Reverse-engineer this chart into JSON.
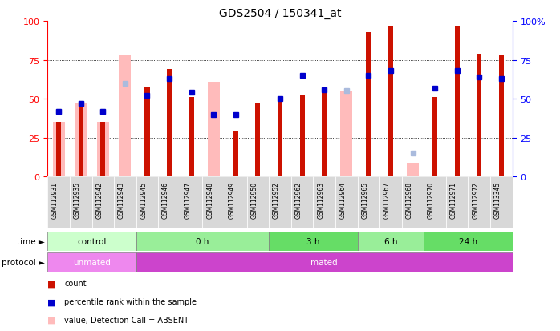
{
  "title": "GDS2504 / 150341_at",
  "samples": [
    "GSM112931",
    "GSM112935",
    "GSM112942",
    "GSM112943",
    "GSM112945",
    "GSM112946",
    "GSM112947",
    "GSM112948",
    "GSM112949",
    "GSM112950",
    "GSM112952",
    "GSM112962",
    "GSM112963",
    "GSM112964",
    "GSM112965",
    "GSM112967",
    "GSM112968",
    "GSM112970",
    "GSM112971",
    "GSM112972",
    "GSM113345"
  ],
  "count_values": [
    35,
    47,
    35,
    null,
    58,
    69,
    51,
    null,
    29,
    47,
    48,
    52,
    57,
    null,
    93,
    97,
    null,
    51,
    97,
    79,
    78
  ],
  "rank_values": [
    42,
    47,
    42,
    null,
    52,
    63,
    54,
    40,
    40,
    null,
    50,
    65,
    56,
    null,
    65,
    68,
    null,
    57,
    68,
    64,
    63
  ],
  "absent_count_values": [
    35,
    47,
    35,
    78,
    null,
    null,
    null,
    61,
    null,
    null,
    null,
    null,
    null,
    55,
    null,
    null,
    9,
    null,
    null,
    null,
    null
  ],
  "absent_rank_values": [
    42,
    47,
    42,
    60,
    null,
    null,
    null,
    null,
    null,
    null,
    null,
    null,
    null,
    55,
    null,
    null,
    15,
    null,
    null,
    null,
    null
  ],
  "time_groups": [
    {
      "label": "control",
      "start": 0,
      "end": 4,
      "color": "#ccffcc"
    },
    {
      "label": "0 h",
      "start": 4,
      "end": 10,
      "color": "#99ee99"
    },
    {
      "label": "3 h",
      "start": 10,
      "end": 14,
      "color": "#66dd66"
    },
    {
      "label": "6 h",
      "start": 14,
      "end": 17,
      "color": "#99ee99"
    },
    {
      "label": "24 h",
      "start": 17,
      "end": 21,
      "color": "#66dd66"
    }
  ],
  "protocol_groups": [
    {
      "label": "unmated",
      "start": 0,
      "end": 4,
      "color": "#ee88ee"
    },
    {
      "label": "mated",
      "start": 4,
      "end": 21,
      "color": "#cc44cc"
    }
  ],
  "color_count": "#cc1100",
  "color_rank": "#0000cc",
  "color_absent_count": "#ffbbbb",
  "color_absent_rank": "#aabbdd",
  "ylim": [
    0,
    100
  ],
  "yticks": [
    0,
    25,
    50,
    75,
    100
  ]
}
